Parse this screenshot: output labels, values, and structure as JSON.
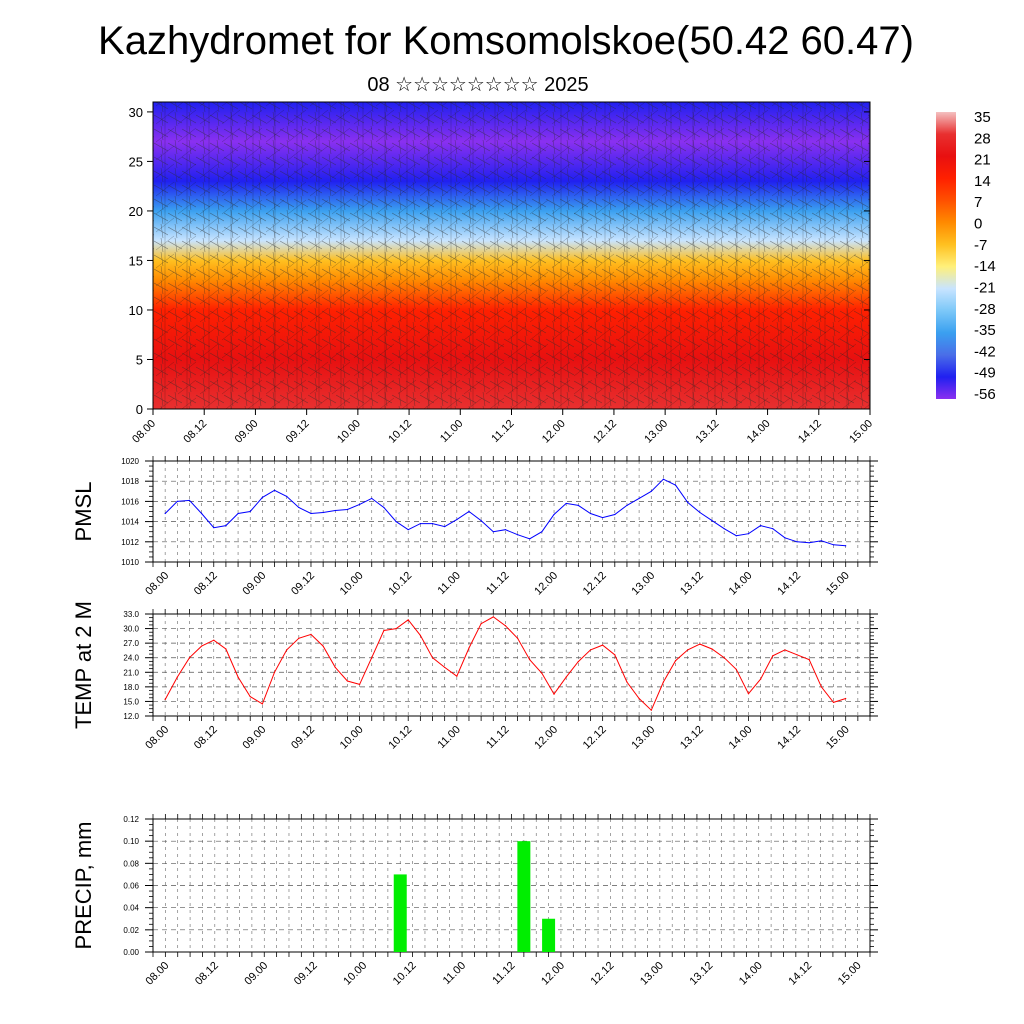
{
  "title": "Kazhydromet for Komsomolskoe(50.42 60.47)",
  "subtitle": "08 ☆☆☆☆☆☆☆☆ 2025",
  "time_labels": [
    "08.00",
    "08.12",
    "09.00",
    "09.12",
    "10.00",
    "10.12",
    "11.00",
    "11.12",
    "12.00",
    "12.12",
    "13.00",
    "13.12",
    "14.00",
    "14.12",
    "15.00"
  ],
  "colors": {
    "pmsl_line": "#0000ff",
    "temp_line": "#ff0000",
    "precip_bar": "#00ee00"
  },
  "chart_data": [
    {
      "id": "crossection",
      "type": "heatmap",
      "yticks": [
        0,
        5,
        10,
        15,
        20,
        25,
        30
      ],
      "ylim": [
        0,
        31
      ],
      "xlim": [
        0,
        14
      ],
      "colorbar": {
        "labels": [
          "35",
          "28",
          "21",
          "14",
          "7",
          "0",
          "-7",
          "-14",
          "-21",
          "-28",
          "-35",
          "-42",
          "-49",
          "-56"
        ],
        "colors": [
          "#f4c0c0",
          "#e83030",
          "#e81010",
          "#ff2000",
          "#ff5000",
          "#ff8a00",
          "#ffc020",
          "#fff07a",
          "#c8e4ff",
          "#7cc8f8",
          "#3aa0f0",
          "#4a6ee8",
          "#2020f0",
          "#8a30f0"
        ]
      },
      "temperature_profile": [
        {
          "height": 0,
          "temp": 30
        },
        {
          "height": 5,
          "temp": 22
        },
        {
          "height": 10,
          "temp": 12
        },
        {
          "height": 13,
          "temp": 3
        },
        {
          "height": 15,
          "temp": -8
        },
        {
          "height": 17,
          "temp": -20
        },
        {
          "height": 20,
          "temp": -38
        },
        {
          "height": 23,
          "temp": -52
        },
        {
          "height": 27,
          "temp": -56
        },
        {
          "height": 31,
          "temp": -50
        }
      ]
    },
    {
      "id": "pmsl",
      "type": "line",
      "ylabel": "PMSL",
      "yticks": [
        "1010",
        "1012",
        "1014",
        "1016",
        "1018",
        "1020"
      ],
      "ylim": [
        1010,
        1020
      ],
      "xlim": [
        -0.25,
        14.5
      ],
      "series": [
        {
          "x": [
            0,
            0.25,
            0.5,
            0.75,
            1,
            1.25,
            1.5,
            1.75,
            2,
            2.25,
            2.5,
            2.75,
            3,
            3.25,
            3.5,
            3.75,
            4,
            4.25,
            4.5,
            4.75,
            5,
            5.25,
            5.5,
            5.75,
            6,
            6.25,
            6.5,
            6.75,
            7,
            7.25,
            7.5,
            7.75,
            8,
            8.25,
            8.5,
            8.75,
            9,
            9.25,
            9.5,
            9.75,
            10,
            10.25,
            10.5,
            10.75,
            11,
            11.25,
            11.5,
            11.75,
            12,
            12.25,
            12.5,
            12.75,
            13,
            13.25,
            13.5,
            13.75,
            14
          ],
          "values": [
            1014.8,
            1016.0,
            1016.1,
            1014.8,
            1013.4,
            1013.6,
            1014.8,
            1015.0,
            1016.4,
            1017.1,
            1016.5,
            1015.4,
            1014.8,
            1014.9,
            1015.1,
            1015.2,
            1015.7,
            1016.3,
            1015.4,
            1014.0,
            1013.2,
            1013.8,
            1013.8,
            1013.5,
            1014.2,
            1015.0,
            1014.1,
            1013.0,
            1013.2,
            1012.7,
            1012.3,
            1013.0,
            1014.7,
            1015.8,
            1015.6,
            1014.8,
            1014.4,
            1014.7,
            1015.6,
            1016.3,
            1017.0,
            1018.2,
            1017.6,
            1015.9,
            1014.9,
            1014.1,
            1013.3,
            1012.6,
            1012.8,
            1013.6,
            1013.3,
            1012.4,
            1012.0,
            1011.9,
            1012.1,
            1011.7,
            1011.6
          ]
        }
      ]
    },
    {
      "id": "temp",
      "type": "line",
      "ylabel": "TEMP at 2 M",
      "yticks": [
        "12.0",
        "15.0",
        "18.0",
        "21.0",
        "24.0",
        "27.0",
        "30.0",
        "33.0"
      ],
      "ylim": [
        12,
        33
      ],
      "xlim": [
        -0.25,
        14.5
      ],
      "series": [
        {
          "x": [
            0,
            0.25,
            0.5,
            0.75,
            1,
            1.25,
            1.5,
            1.75,
            2,
            2.25,
            2.5,
            2.75,
            3,
            3.25,
            3.5,
            3.75,
            4,
            4.25,
            4.5,
            4.75,
            5,
            5.25,
            5.5,
            5.75,
            6,
            6.25,
            6.5,
            6.75,
            7,
            7.25,
            7.5,
            7.75,
            8,
            8.25,
            8.5,
            8.75,
            9,
            9.25,
            9.5,
            9.75,
            10,
            10.25,
            10.5,
            10.75,
            11,
            11.25,
            11.5,
            11.75,
            12,
            12.25,
            12.5,
            12.75,
            13,
            13.25,
            13.5,
            13.75,
            14
          ],
          "values": [
            15.4,
            20.0,
            24.0,
            26.4,
            27.6,
            25.8,
            20.0,
            16.0,
            14.5,
            21.0,
            25.6,
            28.0,
            28.8,
            26.4,
            22.0,
            19.2,
            18.5,
            24.0,
            29.6,
            30.0,
            31.8,
            28.6,
            24.0,
            22.0,
            20.2,
            26.0,
            31.0,
            32.4,
            30.6,
            28.0,
            23.6,
            20.8,
            16.5,
            20.0,
            23.2,
            25.6,
            26.6,
            24.6,
            19.0,
            15.6,
            13.2,
            19.0,
            23.4,
            25.6,
            26.8,
            25.8,
            24.0,
            21.6,
            16.6,
            19.6,
            24.4,
            25.6,
            24.6,
            23.6,
            18.0,
            14.8,
            15.6
          ]
        }
      ]
    },
    {
      "id": "precip",
      "type": "bar",
      "ylabel": "PRECIP, mm",
      "yticks": [
        "0.00",
        "0.02",
        "0.04",
        "0.06",
        "0.08",
        "0.10",
        "0.12"
      ],
      "ylim": [
        0,
        0.12
      ],
      "xlim": [
        -0.25,
        14.25
      ],
      "series": [
        {
          "x": [
            4.75,
            7.25,
            7.75
          ],
          "values": [
            0.07,
            0.1,
            0.03
          ]
        }
      ]
    }
  ]
}
